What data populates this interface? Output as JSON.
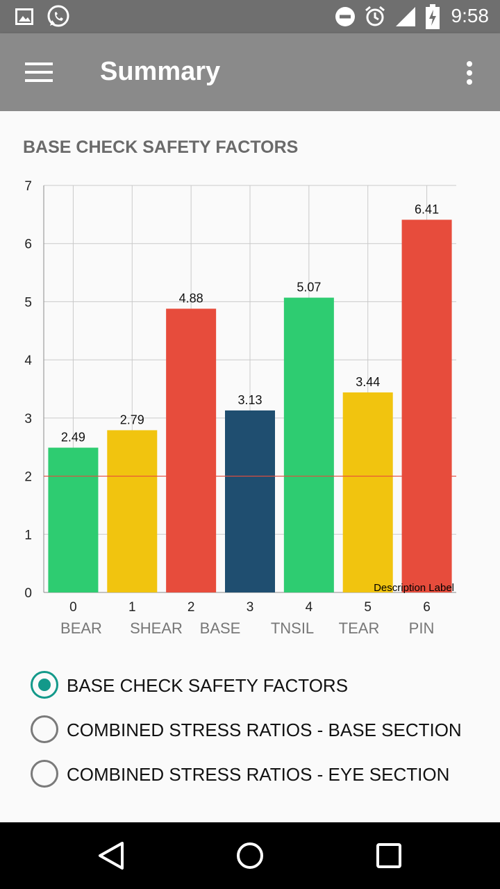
{
  "status_bar": {
    "time": "9:58",
    "left_icons": [
      "image-icon",
      "whatsapp-icon"
    ],
    "right_icons": [
      "do-not-disturb-icon",
      "alarm-icon",
      "signal-icon",
      "battery-charging-icon"
    ]
  },
  "app_bar": {
    "menu_icon": "hamburger-menu-icon",
    "title": "Summary",
    "overflow_icon": "more-vert-icon"
  },
  "chart_section": {
    "title": "BASE CHECK SAFETY FACTORS",
    "description_label": "Description Label"
  },
  "chart_data": {
    "type": "bar",
    "categories": [
      "0",
      "1",
      "2",
      "3",
      "4",
      "5",
      "6"
    ],
    "category_names": [
      "BEAR",
      "SHEAR",
      "BASE",
      "",
      "TNSIL",
      "TEAR",
      "PIN"
    ],
    "values": [
      2.49,
      2.79,
      4.88,
      3.13,
      5.07,
      3.44,
      6.41
    ],
    "value_labels": [
      "2.49",
      "2.79",
      "4.88",
      "3.13",
      "5.07",
      "3.44",
      "6.41"
    ],
    "colors": [
      "#2ecc71",
      "#f1c40f",
      "#e74c3c",
      "#1f4e70",
      "#2ecc71",
      "#f1c40f",
      "#e74c3c"
    ],
    "ylim": [
      0,
      7
    ],
    "yticks": [
      0,
      1,
      2,
      3,
      4,
      5,
      6,
      7
    ],
    "limit_line": {
      "value": 2,
      "color": "#e74c3c"
    },
    "grid": true,
    "title": "",
    "xlabel": "",
    "ylabel": ""
  },
  "radio_options": {
    "items": [
      {
        "label": "BASE CHECK SAFETY FACTORS",
        "checked": true
      },
      {
        "label": "COMBINED STRESS RATIOS - BASE SECTION",
        "checked": false
      },
      {
        "label": "COMBINED STRESS RATIOS - EYE SECTION",
        "checked": false
      }
    ],
    "accent_color": "#13998a"
  },
  "nav_bar": {
    "icons": [
      "back-icon",
      "home-icon",
      "recents-icon"
    ]
  }
}
